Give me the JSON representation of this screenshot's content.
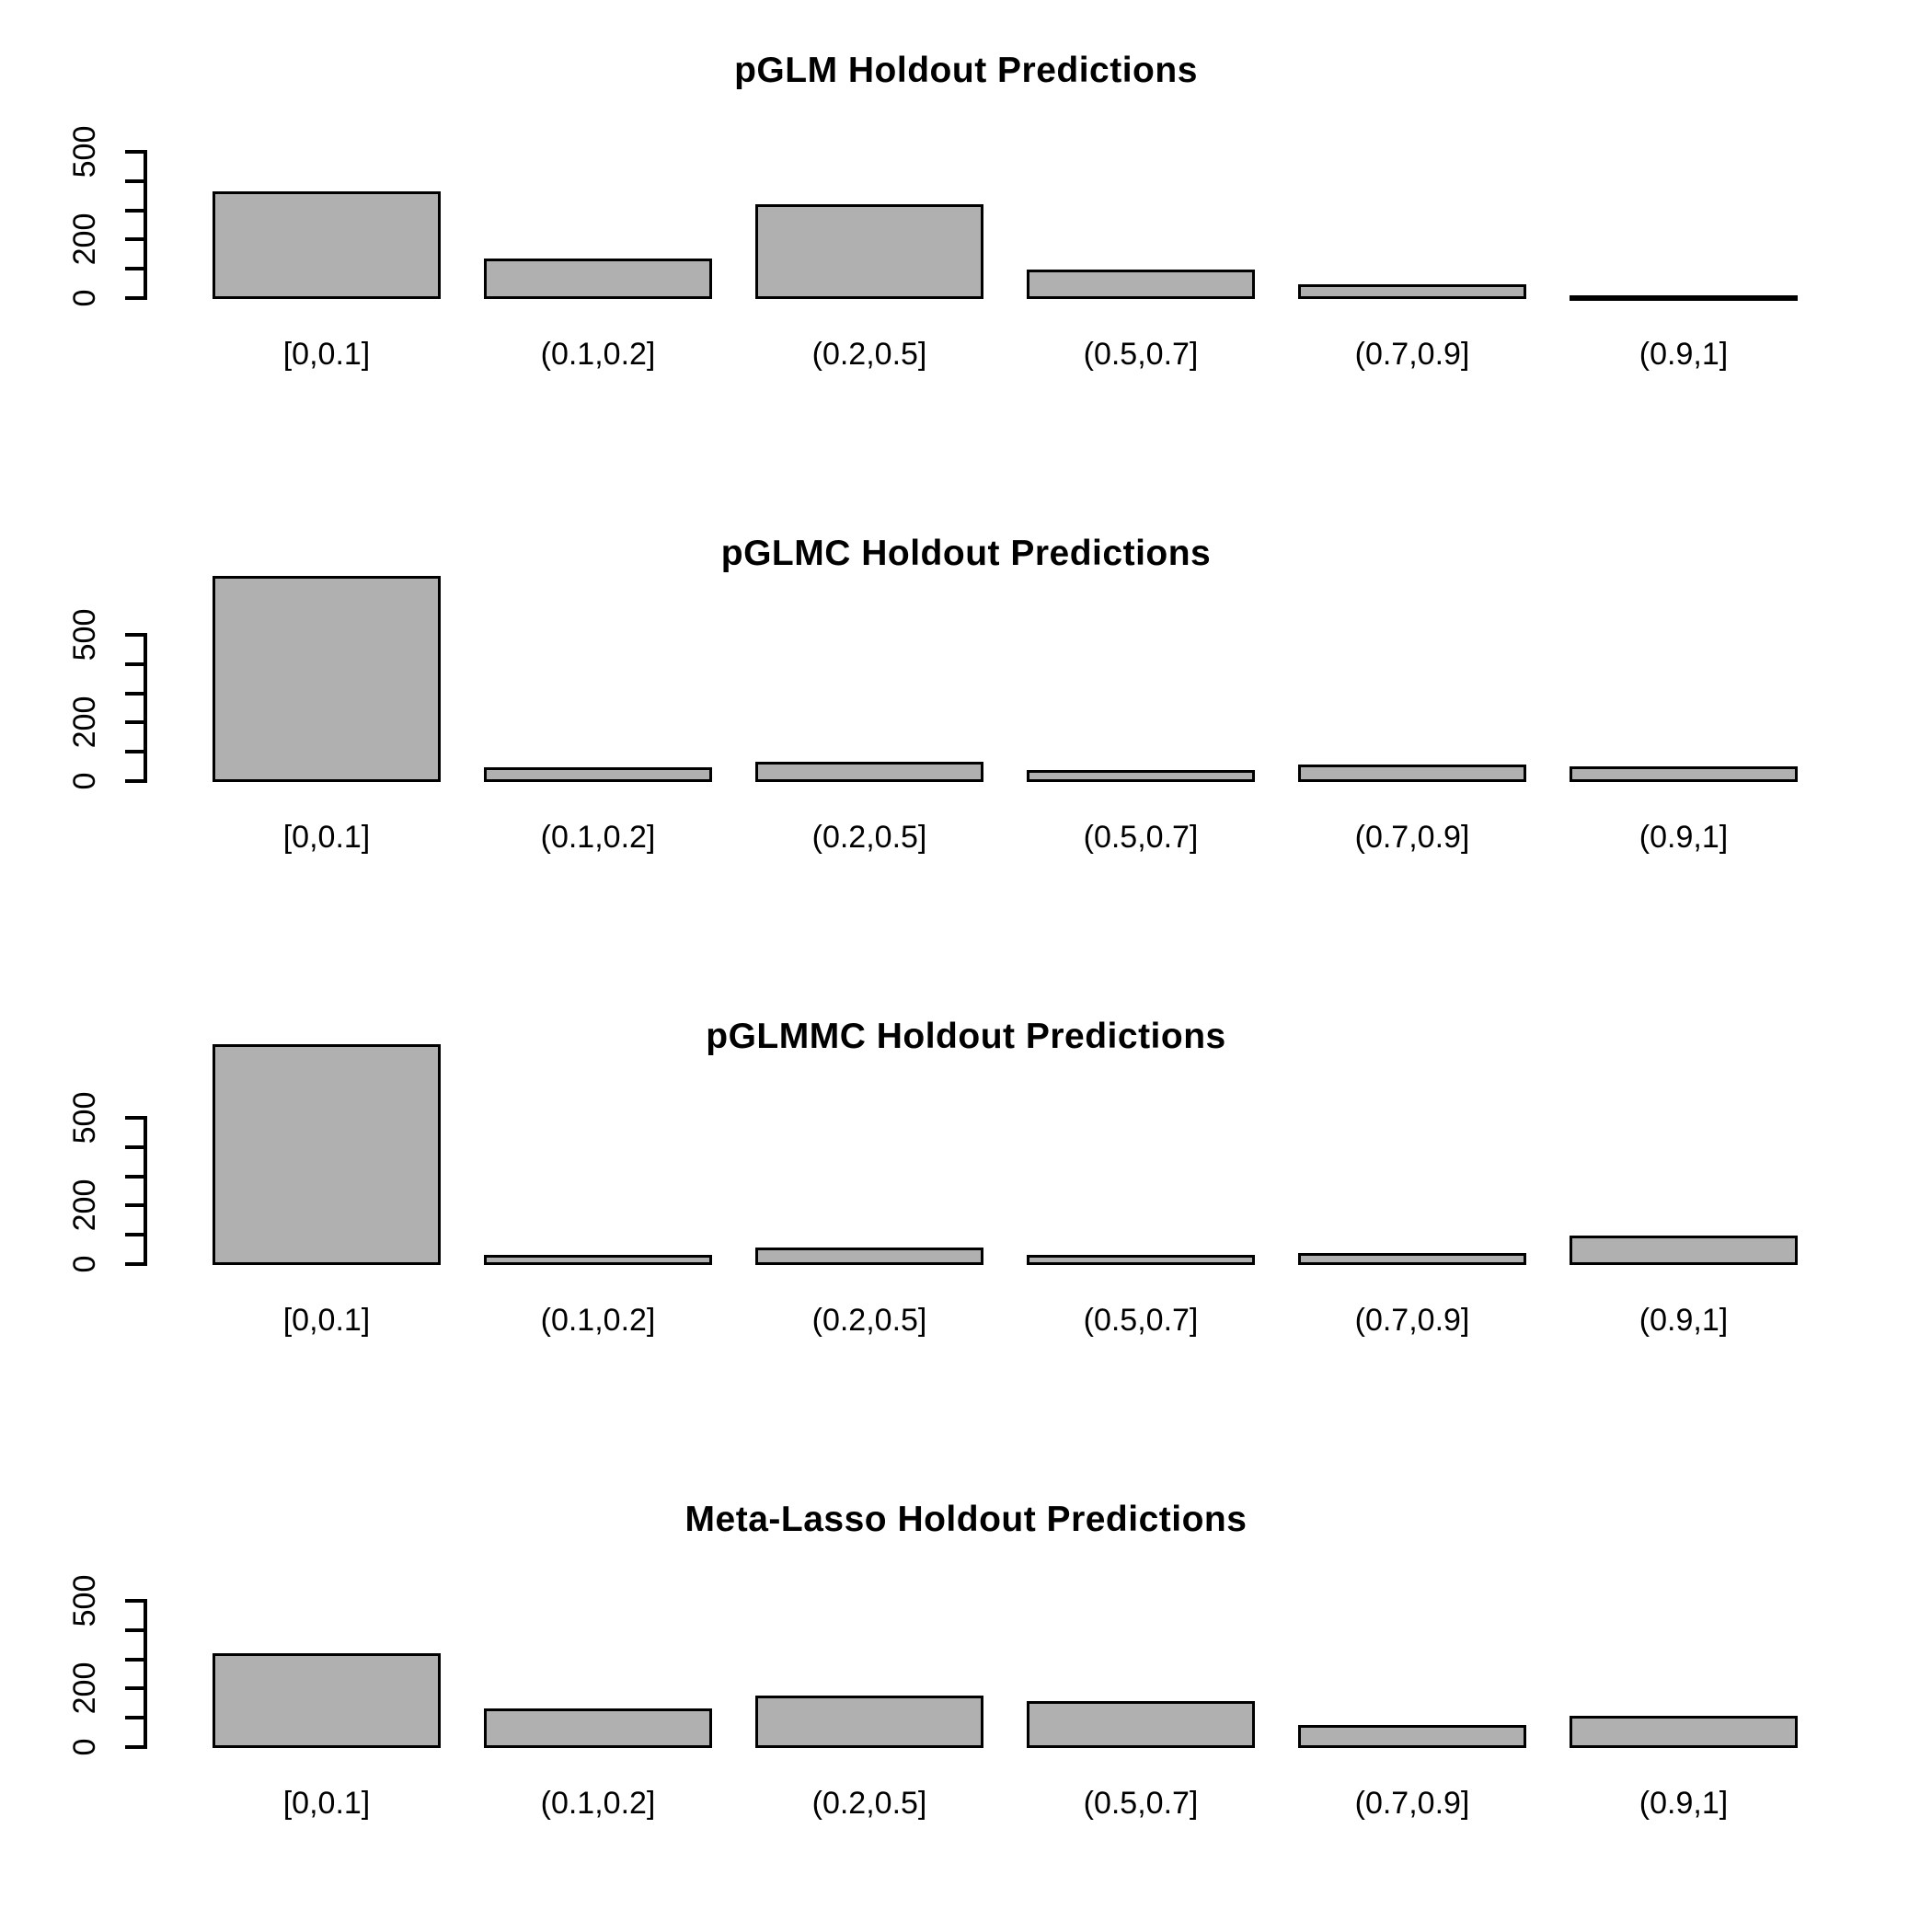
{
  "figure": {
    "background_color": "#ffffff",
    "text_color": "#000000",
    "bar_fill_color": "#b0b0b0",
    "bar_border_color": "#000000",
    "axis_color": "#000000"
  },
  "chart_data": [
    {
      "type": "bar",
      "title": "pGLM Holdout Predictions",
      "categories": [
        "[0,0.1]",
        "(0.1,0.2]",
        "(0.2,0.5]",
        "(0.5,0.7]",
        "(0.7,0.9]",
        "(0.9,1]"
      ],
      "values": [
        360,
        130,
        315,
        90,
        40,
        3
      ],
      "xlabel": "",
      "ylabel": "",
      "ylim": [
        0,
        500
      ],
      "yticks": [
        0,
        100,
        200,
        300,
        400,
        500
      ],
      "ytick_labels": [
        "0",
        "",
        "200",
        "",
        "",
        "500"
      ],
      "grid": false,
      "legend": null
    },
    {
      "type": "bar",
      "title": "pGLMC Holdout Predictions",
      "categories": [
        "[0,0.1]",
        "(0.1,0.2]",
        "(0.2,0.5]",
        "(0.5,0.7]",
        "(0.7,0.9]",
        "(0.9,1]"
      ],
      "values": [
        695,
        40,
        60,
        30,
        50,
        45
      ],
      "xlabel": "",
      "ylabel": "",
      "ylim": [
        0,
        500
      ],
      "yticks": [
        0,
        100,
        200,
        300,
        400,
        500
      ],
      "ytick_labels": [
        "0",
        "",
        "200",
        "",
        "",
        "500"
      ],
      "grid": false,
      "legend": null
    },
    {
      "type": "bar",
      "title": "pGLMMC Holdout Predictions",
      "categories": [
        "[0,0.1]",
        "(0.1,0.2]",
        "(0.2,0.5]",
        "(0.5,0.7]",
        "(0.7,0.9]",
        "(0.9,1]"
      ],
      "values": [
        745,
        25,
        50,
        25,
        30,
        90
      ],
      "xlabel": "",
      "ylabel": "",
      "ylim": [
        0,
        500
      ],
      "yticks": [
        0,
        100,
        200,
        300,
        400,
        500
      ],
      "ytick_labels": [
        "0",
        "",
        "200",
        "",
        "",
        "500"
      ],
      "grid": false,
      "legend": null
    },
    {
      "type": "bar",
      "title": "Meta-Lasso Holdout Predictions",
      "categories": [
        "[0,0.1]",
        "(0.1,0.2]",
        "(0.2,0.5]",
        "(0.5,0.7]",
        "(0.7,0.9]",
        "(0.9,1]"
      ],
      "values": [
        315,
        125,
        170,
        150,
        70,
        100
      ],
      "xlabel": "",
      "ylabel": "",
      "ylim": [
        0,
        500
      ],
      "yticks": [
        0,
        100,
        200,
        300,
        400,
        500
      ],
      "ytick_labels": [
        "0",
        "",
        "200",
        "",
        "",
        "500"
      ],
      "grid": false,
      "legend": null
    }
  ]
}
